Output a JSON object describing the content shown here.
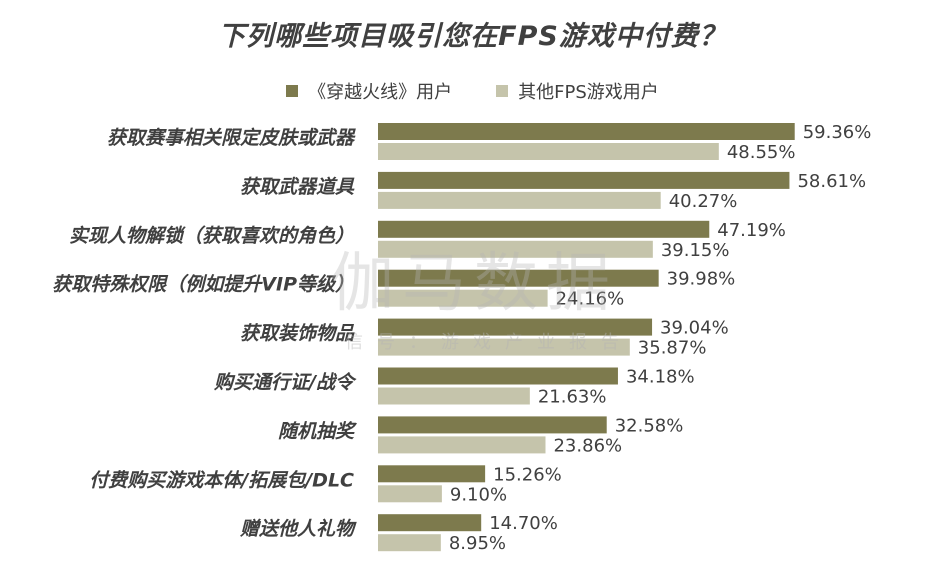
{
  "colors": {
    "series1": "#7d7a4d",
    "series2": "#c5c4ab"
  },
  "watermark": {
    "main": "伽马数据",
    "sub": "信号：游戏产业报告"
  },
  "chart_data": {
    "type": "bar",
    "orientation": "horizontal",
    "title": "下列哪些项目吸引您在FPS游戏中付费？",
    "categories": [
      "获取赛事相关限定皮肤或武器",
      "获取武器道具",
      "实现人物解锁（获取喜欢的角色）",
      "获取特殊权限（例如提升VIP等级）",
      "获取装饰物品",
      "购买通行证/战令",
      "随机抽奖",
      "付费购买游戏本体/拓展包/DLC",
      "赠送他人礼物"
    ],
    "series": [
      {
        "name": "《穿越火线》用户",
        "values": [
          59.36,
          58.61,
          47.19,
          39.98,
          39.04,
          34.18,
          32.58,
          15.26,
          14.7
        ]
      },
      {
        "name": "其他FPS游戏用户",
        "values": [
          48.55,
          40.27,
          39.15,
          24.16,
          35.87,
          21.63,
          23.86,
          9.1,
          8.95
        ]
      }
    ],
    "value_labels": [
      [
        "59.36%",
        "58.61%",
        "47.19%",
        "39.98%",
        "39.04%",
        "34.18%",
        "32.58%",
        "15.26%",
        "14.70%"
      ],
      [
        "48.55%",
        "40.27%",
        "39.15%",
        "24.16%",
        "35.87%",
        "21.63%",
        "23.86%",
        "9.10%",
        "8.95%"
      ]
    ],
    "xlim": [
      0,
      70
    ],
    "xlabel": "",
    "ylabel": "",
    "grid": false,
    "legend_position": "top-center"
  }
}
